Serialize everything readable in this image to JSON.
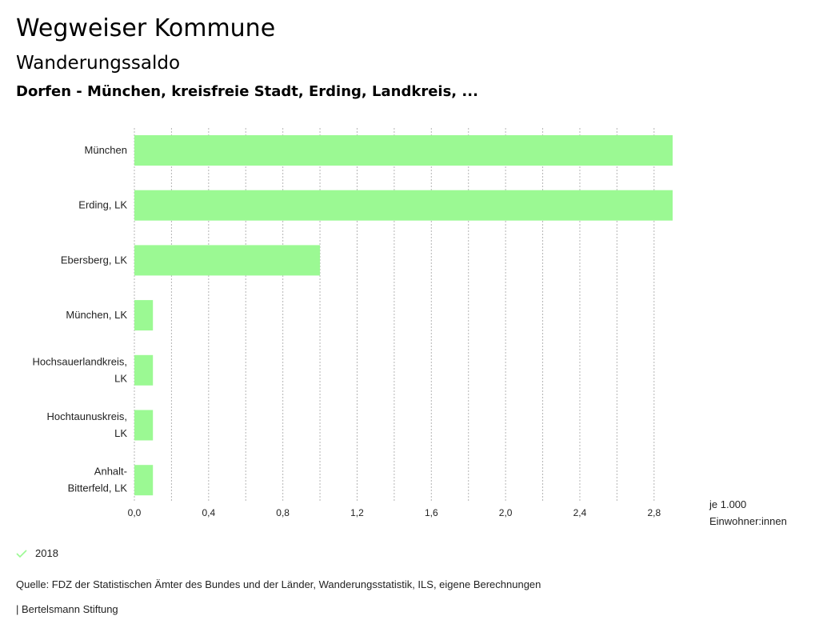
{
  "header": {
    "title": "Wegweiser Kommune",
    "subtitle": "Wanderungssaldo",
    "region": "Dorfen - München, kreisfreie Stadt, Erding, Landkreis, ..."
  },
  "chart_data": {
    "type": "bar",
    "orientation": "horizontal",
    "categories": [
      [
        "München"
      ],
      [
        "Erding, LK"
      ],
      [
        "Ebersberg, LK"
      ],
      [
        "München, LK"
      ],
      [
        "Hochsauerlandkreis,",
        "LK"
      ],
      [
        "Hochtaunuskreis,",
        "LK"
      ],
      [
        "Anhalt-",
        "Bitterfeld, LK"
      ]
    ],
    "series": [
      {
        "name": "2018",
        "color": "#9bf993",
        "values": [
          2.9,
          2.9,
          1.0,
          0.1,
          0.1,
          0.1,
          0.1
        ]
      }
    ],
    "xlim": [
      0,
      2.9
    ],
    "ticks": [
      "0,0",
      "0,4",
      "0,8",
      "1,2",
      "1,6",
      "2,0",
      "2,4",
      "2,8"
    ],
    "tick_values": [
      0,
      0.4,
      0.8,
      1.2,
      1.6,
      2.0,
      2.4,
      2.8
    ],
    "grid_step": 0.2,
    "unit": [
      "je 1.000",
      "Einwohner:innen"
    ]
  },
  "legend": {
    "label": "2018",
    "color": "#9bf993"
  },
  "footer": {
    "source": "Quelle: FDZ der Statistischen Ämter des Bundes und der Länder, Wanderungsstatistik, ILS, eigene Berechnungen",
    "credit": "| Bertelsmann Stiftung"
  }
}
